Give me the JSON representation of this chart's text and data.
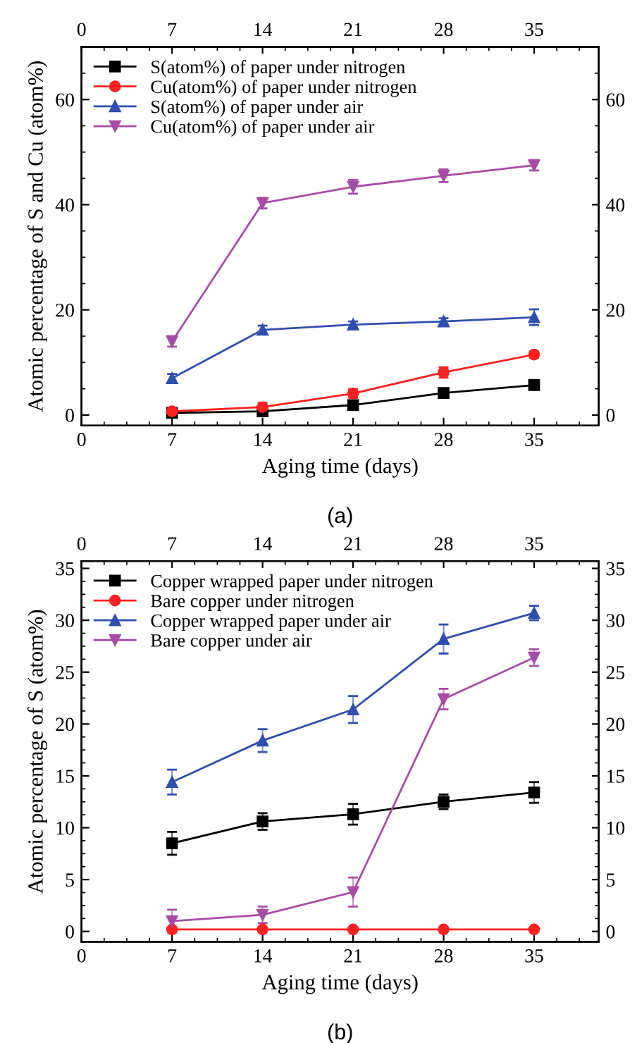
{
  "chart_data": [
    {
      "type": "line",
      "title": "(a)",
      "xlabel": "Aging time (days)",
      "ylabel": "Atomic percentage of S and Cu (atom%)",
      "x": [
        7,
        14,
        21,
        28,
        35
      ],
      "xlim": [
        0,
        40
      ],
      "xticks": [
        0,
        7,
        14,
        21,
        28,
        35
      ],
      "x2lim": [
        0,
        40
      ],
      "x2ticks": [
        0,
        7,
        14,
        21,
        28,
        35
      ],
      "ylim": [
        -2,
        70
      ],
      "yticks": [
        0,
        20,
        40,
        60
      ],
      "y2lim": [
        -2,
        70
      ],
      "y2ticks": [
        0,
        20,
        40,
        60
      ],
      "grid": false,
      "legend": "top left",
      "line_style": "solid",
      "series": [
        {
          "name": "S(atom%) of paper under nitrogen",
          "color": "#000000",
          "marker": "square",
          "values": [
            0.4,
            0.7,
            1.9,
            4.2,
            5.7
          ],
          "errors": [
            0.5,
            0.5,
            0.8,
            0.6,
            0.8
          ]
        },
        {
          "name": "Cu(atom%) of paper under nitrogen",
          "color": "#ff2020",
          "marker": "circle",
          "values": [
            0.7,
            1.5,
            4.1,
            8.1,
            11.5
          ],
          "errors": [
            0.5,
            0.8,
            0.8,
            1.0,
            0.6
          ]
        },
        {
          "name": "S(atom%) of paper under air",
          "color": "#2e4fad",
          "marker": "triangle",
          "values": [
            7.0,
            16.2,
            17.2,
            17.8,
            18.6
          ],
          "errors": [
            0.8,
            0.8,
            0.6,
            0.6,
            1.5
          ]
        },
        {
          "name": "Cu(atom%) of paper under air",
          "color": "#a64ca6",
          "marker": "triangle_down",
          "values": [
            14.0,
            40.3,
            43.4,
            45.5,
            47.5
          ],
          "errors": [
            1.0,
            1.0,
            1.3,
            1.2,
            1.0
          ]
        }
      ]
    },
    {
      "type": "line",
      "title": "(b)",
      "xlabel": "Aging time (days)",
      "ylabel": "Atomic percentage of S (atom%)",
      "x": [
        7,
        14,
        21,
        28,
        35
      ],
      "xlim": [
        0,
        40
      ],
      "xticks": [
        0,
        7,
        14,
        21,
        28,
        35
      ],
      "x2lim": [
        0,
        40
      ],
      "x2ticks": [
        0,
        7,
        14,
        21,
        28,
        35
      ],
      "ylim": [
        -1,
        35.7
      ],
      "yticks": [
        0,
        5,
        10,
        15,
        20,
        25,
        30,
        35
      ],
      "y2lim": [
        -1,
        35.7
      ],
      "y2ticks": [
        0,
        5,
        10,
        15,
        20,
        25,
        30,
        35
      ],
      "grid": false,
      "legend": "top left",
      "line_style": "solid",
      "series": [
        {
          "name": "Copper wrapped paper under nitrogen",
          "color": "#000000",
          "marker": "square",
          "values": [
            8.5,
            10.6,
            11.3,
            12.5,
            13.4
          ],
          "errors": [
            1.1,
            0.8,
            1.0,
            0.7,
            1.0
          ]
        },
        {
          "name": "Bare copper under nitrogen",
          "color": "#ff2020",
          "marker": "circle",
          "values": [
            0.2,
            0.2,
            0.2,
            0.2,
            0.2
          ]
        },
        {
          "name": "Copper wrapped paper under air",
          "color": "#2e4fad",
          "marker": "triangle",
          "values": [
            14.4,
            18.4,
            21.4,
            28.2,
            30.7
          ],
          "errors": [
            1.2,
            1.1,
            1.3,
            1.4,
            0.7
          ]
        },
        {
          "name": "Bare copper under air",
          "color": "#a64ca6",
          "marker": "triangle_down",
          "values": [
            1.0,
            1.6,
            3.8,
            22.4,
            26.4
          ],
          "errors": [
            1.1,
            0.8,
            1.4,
            1.0,
            0.8
          ]
        }
      ]
    }
  ]
}
